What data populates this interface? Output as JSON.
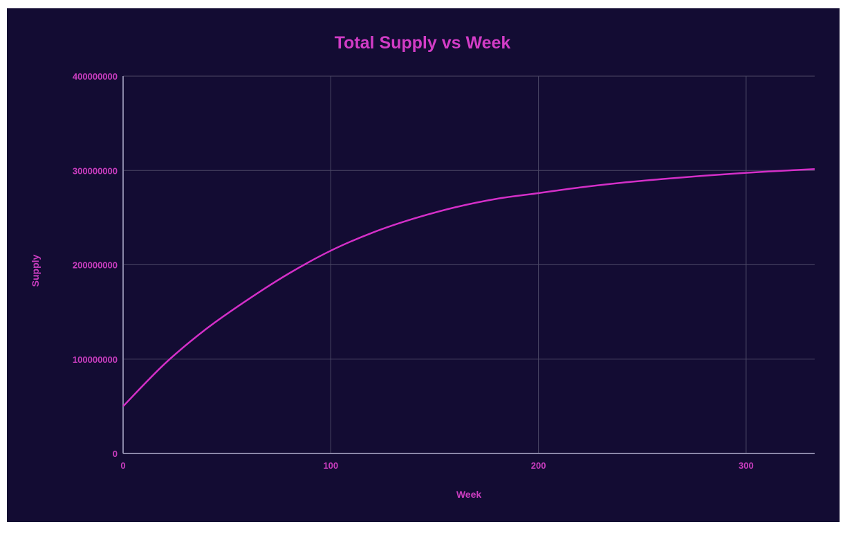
{
  "colors": {
    "background": "#130c33",
    "line": "#d42fc8",
    "text": "#c93dbf",
    "grid": "#4c4866"
  },
  "chart_data": {
    "type": "line",
    "title": "Total Supply vs Week",
    "xlabel": "Week",
    "ylabel": "Supply",
    "xlim": [
      0,
      333
    ],
    "ylim": [
      0,
      400000000
    ],
    "xticks": [
      "0",
      "100",
      "200",
      "300"
    ],
    "yticks": [
      "0",
      "100000000",
      "200000000",
      "300000000",
      "400000000"
    ],
    "grid": true,
    "series": [
      {
        "name": "Supply",
        "x": [
          0,
          20,
          40,
          60,
          80,
          100,
          120,
          140,
          160,
          180,
          200,
          220,
          240,
          260,
          280,
          300,
          320,
          333
        ],
        "values": [
          50000000,
          95000000,
          132000000,
          163000000,
          191000000,
          215000000,
          234000000,
          249000000,
          261000000,
          270000000,
          276000000,
          282000000,
          287000000,
          291000000,
          294500000,
          297500000,
          300000000,
          301500000
        ]
      }
    ]
  }
}
